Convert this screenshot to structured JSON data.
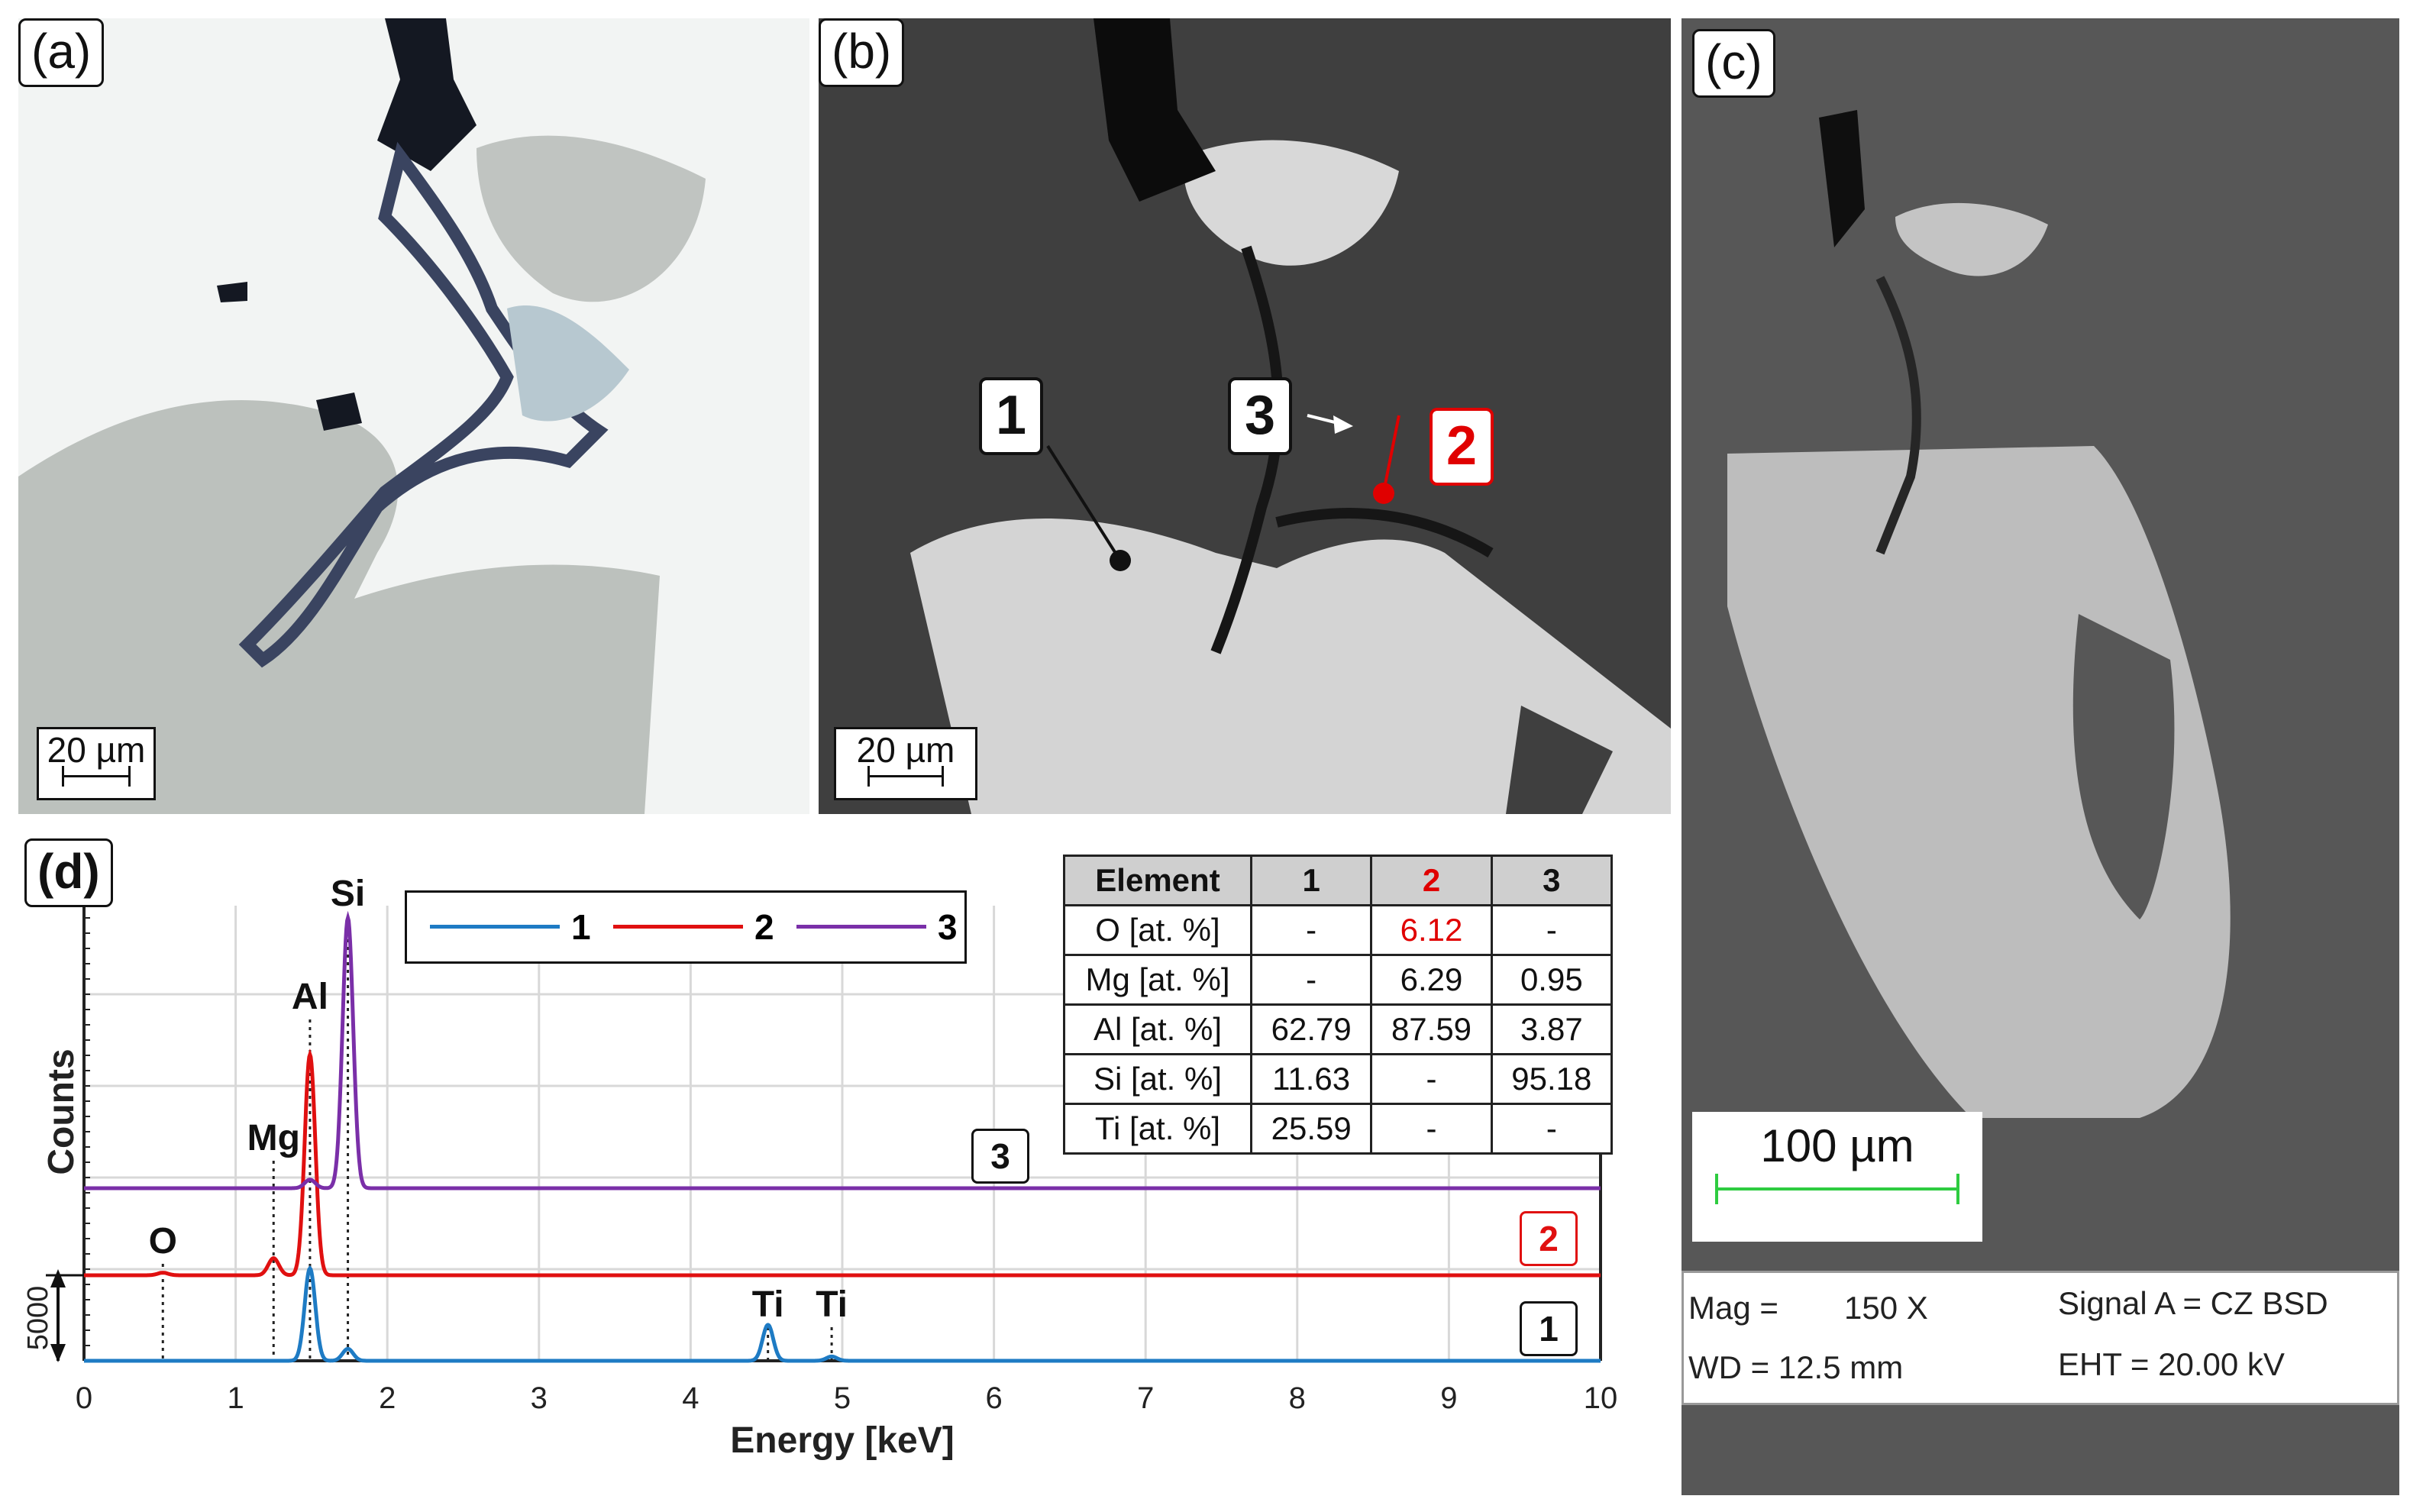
{
  "panels": {
    "a": {
      "label": "(a)",
      "scale": "20 µm"
    },
    "b": {
      "label": "(b)",
      "scale": "20 µm",
      "points": [
        {
          "text": "1",
          "color": "#111111"
        },
        {
          "text": "2",
          "color": "#e00000"
        },
        {
          "text": "3",
          "color": "#111111"
        }
      ]
    },
    "c": {
      "label": "(c)",
      "scale": "100 µm",
      "info": {
        "mag": "Mag =",
        "mag_value": "150 X",
        "wd": "WD = 12.5 mm",
        "signal": "Signal A = CZ BSD",
        "eht": "EHT = 20.00 kV"
      }
    },
    "d": {
      "label": "(d)"
    }
  },
  "table": {
    "headers": [
      "Element",
      "1",
      "2",
      "3"
    ],
    "rows": [
      [
        "O [at. %]",
        "-",
        "6.12",
        "-"
      ],
      [
        "Mg [at. %]",
        "-",
        "6.29",
        "0.95"
      ],
      [
        "Al [at. %]",
        "62.79",
        "87.59",
        "3.87"
      ],
      [
        "Si [at. %]",
        "11.63",
        "-",
        "95.18"
      ],
      [
        "Ti [at. %]",
        "25.59",
        "-",
        "-"
      ]
    ],
    "highlight_color": "#e00000"
  },
  "chart_data": {
    "type": "line",
    "xlabel": "Energy [keV]",
    "ylabel": "Counts",
    "xlim": [
      0,
      10
    ],
    "xticks": [
      "0",
      "1",
      "2",
      "3",
      "4",
      "5",
      "6",
      "7",
      "8",
      "9",
      "10"
    ],
    "scale_marker": "5000",
    "legend": [
      "1",
      "2",
      "3"
    ],
    "peak_labels": [
      {
        "text": "O",
        "x": 0.52
      },
      {
        "text": "Mg",
        "x": 1.25
      },
      {
        "text": "Al",
        "x": 1.49
      },
      {
        "text": "Si",
        "x": 1.74
      },
      {
        "text": "Ti",
        "x": 4.51
      },
      {
        "text": "Ti",
        "x": 4.93
      }
    ],
    "series": [
      {
        "name": "1",
        "color": "#1e7bc4",
        "peaks": [
          {
            "x": 1.49,
            "y": 5400
          },
          {
            "x": 1.74,
            "y": 700
          },
          {
            "x": 4.51,
            "y": 2100
          },
          {
            "x": 4.93,
            "y": 250
          }
        ]
      },
      {
        "name": "2",
        "color": "#e01010",
        "peaks": [
          {
            "x": 0.52,
            "y": 150
          },
          {
            "x": 1.25,
            "y": 1000
          },
          {
            "x": 1.49,
            "y": 12900
          }
        ]
      },
      {
        "name": "3",
        "color": "#7a2fa8",
        "peaks": [
          {
            "x": 1.49,
            "y": 500
          },
          {
            "x": 1.74,
            "y": 15800
          }
        ]
      }
    ]
  }
}
